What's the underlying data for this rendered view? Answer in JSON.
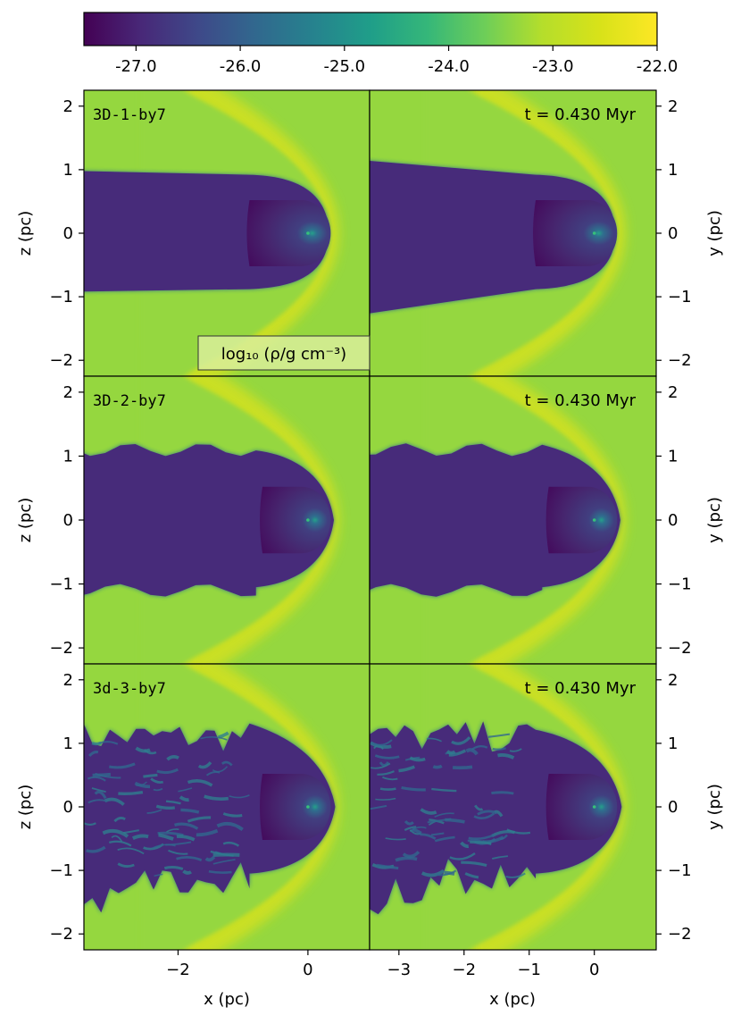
{
  "chart_data": {
    "type": "heatmap",
    "colormap": "viridis",
    "colorbar": {
      "position": "top",
      "range": [
        -27.5,
        -22.0
      ],
      "ticks": [
        -27.0,
        -26.0,
        -25.0,
        -24.0,
        -23.0,
        -22.0
      ],
      "tick_labels": [
        "-27.0",
        "-26.0",
        "-25.0",
        "-24.0",
        "-23.0",
        "-22.0"
      ],
      "label": "log₁₀ (ρ/g cm⁻³)"
    },
    "rows": [
      {
        "label": "3D-1-by7",
        "time": "t = 0.430 Myr",
        "wake_style": "smooth"
      },
      {
        "label": "3D-2-by7",
        "time": "t = 0.430 Myr",
        "wake_style": "wavy"
      },
      {
        "label": "3d-3-by7",
        "time": "t = 0.430 Myr",
        "wake_style": "turbulent"
      }
    ],
    "left_column": {
      "xlabel": "x (pc)",
      "ylabel": "z (pc)",
      "xlim": [
        -3.45,
        0.95
      ],
      "xticks": [
        -2,
        0
      ],
      "xtick_labels": [
        "−2",
        "0"
      ]
    },
    "right_column": {
      "xlabel": "x (pc)",
      "ylabel": "y (pc)",
      "xlim": [
        -3.45,
        0.95
      ],
      "xticks": [
        -3,
        -2,
        -1,
        0
      ],
      "xtick_labels": [
        "−3",
        "−2",
        "−1",
        "0"
      ]
    },
    "ylim": [
      -2.25,
      2.25
    ],
    "yticks": [
      -2,
      -1,
      0,
      1,
      2
    ],
    "ytick_labels": [
      "−2",
      "−1",
      "0",
      "1",
      "2"
    ],
    "ambient_log_density": -23.35,
    "bow_shock_log_density": -22.5,
    "wake_log_density": -26.9,
    "bubble_log_density": -27.4
  }
}
